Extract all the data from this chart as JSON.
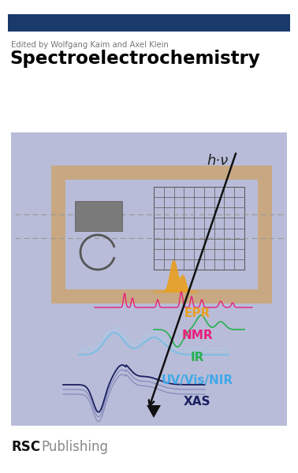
{
  "bg_color": "#ffffff",
  "top_bar_color": "#1a3a6b",
  "editor_text": "Edited by Wolfgang Kaim and Axel Klein",
  "editor_color": "#777777",
  "title_text": "Spectroelectrochemistry",
  "title_color": "#000000",
  "panel_bg": "#b8bcd8",
  "frame_color": "#c8a882",
  "grid_color": "#555555",
  "dashed_line_color": "#999999",
  "hv_text": "h·ν",
  "epr_text": "EPR",
  "epr_color": "#e8a020",
  "nmr_text": "NMR",
  "nmr_color": "#e8207a",
  "ir_text": "IR",
  "ir_color": "#28b050",
  "uvvis_text": "UV/Vis/NIR",
  "uvvis_color": "#40a8e8",
  "xas_text": "XAS",
  "xas_color": "#1a2060",
  "rsc_bold": "RSC",
  "rsc_light": "Publishing"
}
